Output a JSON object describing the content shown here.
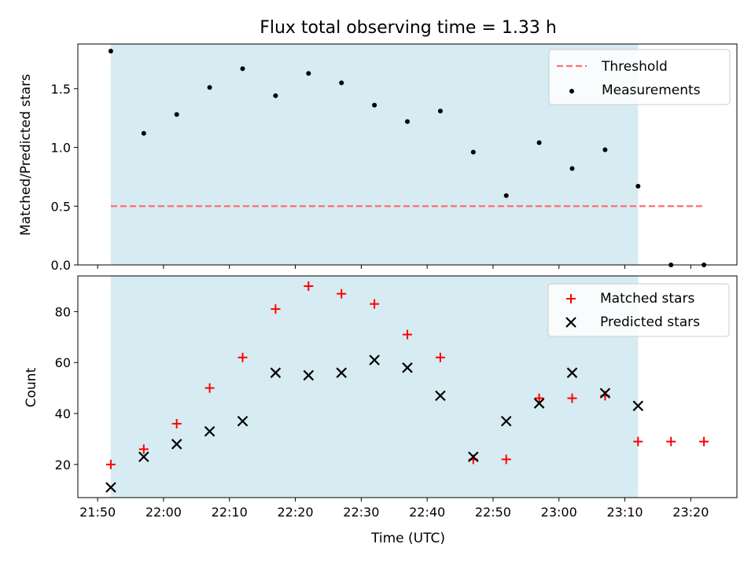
{
  "chart_data": [
    {
      "type": "scatter",
      "title": "Flux total observing time = 1.33 h",
      "xlabel": "",
      "ylabel": "Matched/Predicted stars",
      "ylim": [
        0,
        1.88
      ],
      "yticks": [
        "0.0",
        "0.5",
        "1.0",
        "1.5"
      ],
      "grid": false,
      "legend_placement": "top-right",
      "observing_window": [
        "21:52",
        "23:12"
      ],
      "threshold": {
        "name": "Threshold",
        "value": 0.5,
        "x_range": [
          "21:52",
          "23:22"
        ],
        "color": "#ff6f6f"
      },
      "series": [
        {
          "name": "Measurements",
          "color": "#000000",
          "x": [
            "21:52",
            "21:57",
            "22:02",
            "22:07",
            "22:12",
            "22:17",
            "22:22",
            "22:27",
            "22:32",
            "22:37",
            "22:42",
            "22:47",
            "22:52",
            "22:57",
            "23:02",
            "23:07",
            "23:12",
            "23:17",
            "23:22"
          ],
          "y": [
            1.82,
            1.12,
            1.28,
            1.51,
            1.67,
            1.44,
            1.63,
            1.55,
            1.36,
            1.22,
            1.31,
            0.96,
            0.59,
            1.04,
            0.82,
            0.98,
            0.67,
            0.0,
            0.0
          ]
        }
      ]
    },
    {
      "type": "scatter",
      "title": "",
      "xlabel": "Time (UTC)",
      "ylabel": "Count",
      "ylim": [
        7,
        94
      ],
      "yticks": [
        "20",
        "40",
        "60",
        "80"
      ],
      "xticks": [
        "21:50",
        "22:00",
        "22:10",
        "22:20",
        "22:30",
        "22:40",
        "22:50",
        "23:00",
        "23:10",
        "23:20"
      ],
      "grid": false,
      "legend_placement": "top-right",
      "series": [
        {
          "name": "Matched stars",
          "marker": "plus",
          "color": "#ff0000",
          "x": [
            "21:52",
            "21:57",
            "22:02",
            "22:07",
            "22:12",
            "22:17",
            "22:22",
            "22:27",
            "22:32",
            "22:37",
            "22:42",
            "22:47",
            "22:52",
            "22:57",
            "23:02",
            "23:07",
            "23:12",
            "23:17",
            "23:22"
          ],
          "y": [
            20,
            26,
            36,
            50,
            62,
            81,
            90,
            87,
            83,
            71,
            62,
            22,
            22,
            46,
            46,
            47,
            29,
            29,
            29
          ]
        },
        {
          "name": "Predicted stars",
          "marker": "x",
          "color": "#000000",
          "x": [
            "21:52",
            "21:57",
            "22:02",
            "22:07",
            "22:12",
            "22:17",
            "22:22",
            "22:27",
            "22:32",
            "22:37",
            "22:42",
            "22:47",
            "22:52",
            "22:57",
            "23:02",
            "23:07",
            "23:12"
          ],
          "y": [
            11,
            23,
            28,
            33,
            37,
            56,
            55,
            56,
            61,
            58,
            47,
            23,
            37,
            44,
            56,
            48,
            43
          ]
        }
      ]
    }
  ]
}
